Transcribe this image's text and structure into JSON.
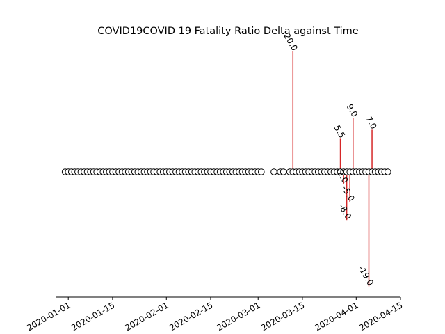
{
  "chart_data": {
    "type": "stem",
    "title": "COVID19COVID 19 Fatality Ratio Delta against Time",
    "xlabel": "",
    "ylabel": "",
    "xlim": [
      "2019-12-28",
      "2020-04-15"
    ],
    "ylim": [
      -21,
      21
    ],
    "x_ticks": [
      "2020-01-01",
      "2020-01-15",
      "2020-02-01",
      "2020-02-15",
      "2020-03-01",
      "2020-03-15",
      "2020-04-01",
      "2020-04-15"
    ],
    "grid": false,
    "legend": "none",
    "colors": {
      "stem": "#d62728",
      "marker_face": "#ffffff",
      "marker_edge": "#000000",
      "axis": "#000000"
    },
    "baseline_dates": {
      "start": "2019-12-31",
      "end": "2020-04-11",
      "missing": [
        "2020-03-03",
        "2020-03-04",
        "2020-03-05",
        "2020-03-07",
        "2020-03-10"
      ]
    },
    "points": [
      {
        "date": "2020-03-12",
        "value": 20.0,
        "label": "20.0"
      },
      {
        "date": "2020-03-27",
        "value": 5.5,
        "label": "5.5"
      },
      {
        "date": "2020-03-28",
        "value": -2.0,
        "label": "-2.0"
      },
      {
        "date": "2020-03-29",
        "value": -8.0,
        "label": "-8.0"
      },
      {
        "date": "2020-03-30",
        "value": -5.0,
        "label": "-5.0"
      },
      {
        "date": "2020-03-31",
        "value": 9.0,
        "label": "9.0"
      },
      {
        "date": "2020-04-05",
        "value": -19.0,
        "label": "-19.0"
      },
      {
        "date": "2020-04-06",
        "value": 7.0,
        "label": "7.0"
      }
    ]
  }
}
